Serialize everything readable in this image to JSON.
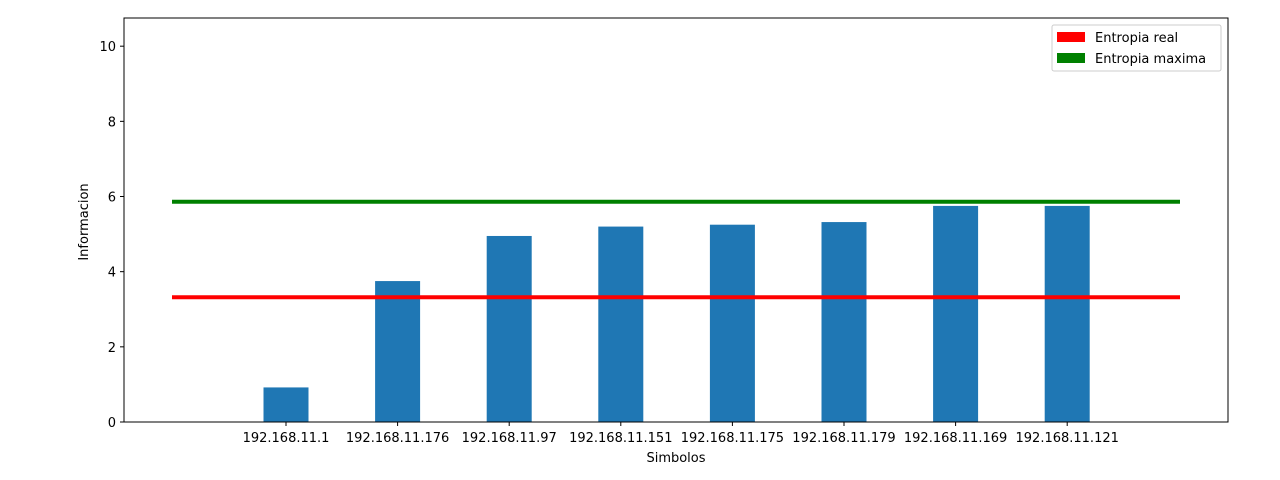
{
  "chart_data": {
    "type": "bar",
    "categories": [
      "192.168.11.1",
      "192.168.11.176",
      "192.168.11.97",
      "192.168.11.151",
      "192.168.11.175",
      "192.168.11.179",
      "192.168.11.169",
      "192.168.11.121"
    ],
    "values": [
      0.92,
      3.75,
      4.95,
      5.2,
      5.25,
      5.32,
      5.75,
      5.75
    ],
    "bar_color": "#1f77b4",
    "xlabel": "Simbolos",
    "ylabel": "Informacion",
    "ylim": [
      0,
      10.75
    ],
    "yticks": [
      0,
      2,
      4,
      6,
      8,
      10
    ],
    "grid": false,
    "legend_position": "top-right",
    "reference_lines": [
      {
        "name": "Entropia real",
        "value": 3.32,
        "color": "#ff0000"
      },
      {
        "name": "Entropia maxima",
        "value": 5.86,
        "color": "#008000"
      }
    ]
  }
}
